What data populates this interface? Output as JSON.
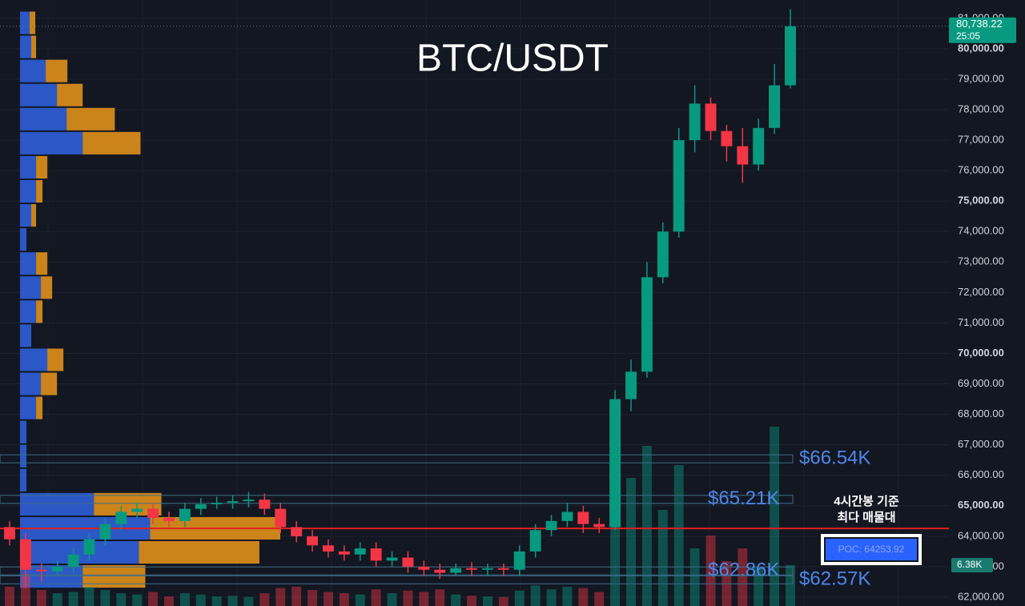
{
  "chart_data": {
    "type": "candlestick",
    "title": "BTC/USDT",
    "ylim": [
      61710,
      81600
    ],
    "yticks": [
      {
        "value": 62000,
        "label": "62,000.00"
      },
      {
        "value": 63000,
        "label": "63,000.00"
      },
      {
        "value": 64000,
        "label": "64,000.00"
      },
      {
        "value": 65000,
        "label": "65,000.00"
      },
      {
        "value": 66000,
        "label": "66,000.00"
      },
      {
        "value": 67000,
        "label": "67,000.00"
      },
      {
        "value": 68000,
        "label": "68,000.00"
      },
      {
        "value": 69000,
        "label": "69,000.00"
      },
      {
        "value": 70000,
        "label": "70,000.00"
      },
      {
        "value": 71000,
        "label": "71,000.00"
      },
      {
        "value": 72000,
        "label": "72,000.00"
      },
      {
        "value": 73000,
        "label": "73,000.00"
      },
      {
        "value": 74000,
        "label": "74,000.00"
      },
      {
        "value": 75000,
        "label": "75,000.00"
      },
      {
        "value": 76000,
        "label": "76,000.00"
      },
      {
        "value": 77000,
        "label": "77,000.00"
      },
      {
        "value": 78000,
        "label": "78,000.00"
      },
      {
        "value": 79000,
        "label": "79,000.00"
      },
      {
        "value": 80000,
        "label": "80,000.00"
      },
      {
        "value": 81000,
        "label": "81,000.00"
      }
    ],
    "grid": true,
    "up_color": "#089981",
    "down_color": "#f23645",
    "open": [
      64300,
      63900,
      62900,
      62850,
      63000,
      63400,
      63900,
      64400,
      64800,
      64900,
      64600,
      64500,
      64900,
      65050,
      65100,
      65150,
      65200,
      64900,
      64300,
      64000,
      63700,
      63500,
      63400,
      63600,
      63200,
      63300,
      63000,
      62900,
      62800,
      62950,
      62900,
      62950,
      62900,
      63500,
      64200,
      64500,
      64800,
      64400,
      64300,
      68500,
      69400,
      72500,
      74000,
      77000,
      78200,
      77300,
      76800,
      76200,
      77400,
      78800
    ],
    "high": [
      64500,
      64100,
      63100,
      63200,
      63600,
      64100,
      64600,
      65000,
      65100,
      65100,
      64800,
      65100,
      65250,
      65300,
      65350,
      65450,
      65400,
      65100,
      64500,
      64200,
      63900,
      63700,
      63800,
      63800,
      63500,
      63500,
      63200,
      63100,
      63100,
      63150,
      63100,
      63100,
      63700,
      64400,
      64700,
      65100,
      65000,
      64600,
      68800,
      69800,
      73000,
      74300,
      77400,
      78800,
      78400,
      77500,
      77400,
      77700,
      79500,
      81300
    ],
    "low": [
      63700,
      62300,
      62500,
      62700,
      62800,
      63200,
      63700,
      64200,
      64600,
      64400,
      64300,
      64300,
      64700,
      64900,
      64900,
      64950,
      64700,
      64100,
      63800,
      63500,
      63300,
      63200,
      63200,
      63000,
      63000,
      62800,
      62700,
      62600,
      62700,
      62700,
      62700,
      62700,
      62700,
      63300,
      64000,
      64300,
      64100,
      64100,
      64200,
      68100,
      69200,
      72300,
      73800,
      76600,
      77000,
      76300,
      75600,
      76000,
      77200,
      78700
    ],
    "close": [
      63900,
      62900,
      62850,
      63000,
      63400,
      63900,
      64400,
      64800,
      64900,
      64600,
      64500,
      64900,
      65050,
      65100,
      65150,
      65200,
      64900,
      64300,
      64000,
      63700,
      63500,
      63400,
      63600,
      63200,
      63300,
      63000,
      62900,
      62800,
      62950,
      62900,
      62950,
      62900,
      63500,
      64200,
      64500,
      64800,
      64400,
      64300,
      68500,
      69400,
      72500,
      74000,
      77000,
      78200,
      77300,
      76800,
      76200,
      77400,
      78800,
      80738.22
    ],
    "volume": [
      3000,
      5000,
      2500,
      2000,
      2200,
      3000,
      2500,
      2000,
      1800,
      2200,
      1500,
      2000,
      1800,
      1500,
      1600,
      1400,
      2000,
      2800,
      3000,
      2500,
      2200,
      2000,
      1800,
      2600,
      2000,
      2400,
      2200,
      2600,
      1800,
      1600,
      1500,
      1400,
      2400,
      3200,
      2600,
      3000,
      2800,
      2200,
      30000,
      20000,
      25000,
      15000,
      22000,
      9000,
      11000,
      7000,
      9000,
      6000,
      28000,
      6380
    ],
    "volume_label": {
      "value": 6380,
      "label": "6.38K"
    },
    "last_price": {
      "value": 80738.22,
      "label": "80,738.22"
    },
    "countdown": "25:05",
    "volume_profile": {
      "prices": [
        62680,
        63470,
        64260,
        65050,
        65840,
        66630,
        67420,
        68210,
        69000,
        69790,
        70580,
        71370,
        72160,
        72950,
        73740,
        74530,
        75320,
        76110,
        76900,
        77690,
        78480,
        79270,
        80060,
        80850
      ],
      "buy": [
        78,
        148,
        162,
        92,
        8,
        8,
        8,
        20,
        26,
        34,
        14,
        20,
        26,
        20,
        8,
        14,
        20,
        20,
        78,
        58,
        46,
        32,
        14,
        12
      ],
      "sell": [
        78,
        150,
        162,
        84,
        0,
        0,
        0,
        8,
        20,
        20,
        0,
        8,
        14,
        14,
        0,
        6,
        8,
        14,
        72,
        60,
        32,
        27,
        6,
        7
      ],
      "buy_color": "#2f5fd8",
      "sell_color": "#e0901a"
    },
    "levels": [
      {
        "value": 66540,
        "label": "$66.54K"
      },
      {
        "value": 65210,
        "label": "$65.21K"
      },
      {
        "value": 62860,
        "label": "$62.86K"
      },
      {
        "value": 62570,
        "label": "$62.57K"
      }
    ],
    "poc": {
      "value": 64253.92,
      "label": "POC: 64253.92",
      "note": [
        "4시간봉 기준",
        "최다 매물대"
      ],
      "color": "#e02020"
    }
  }
}
